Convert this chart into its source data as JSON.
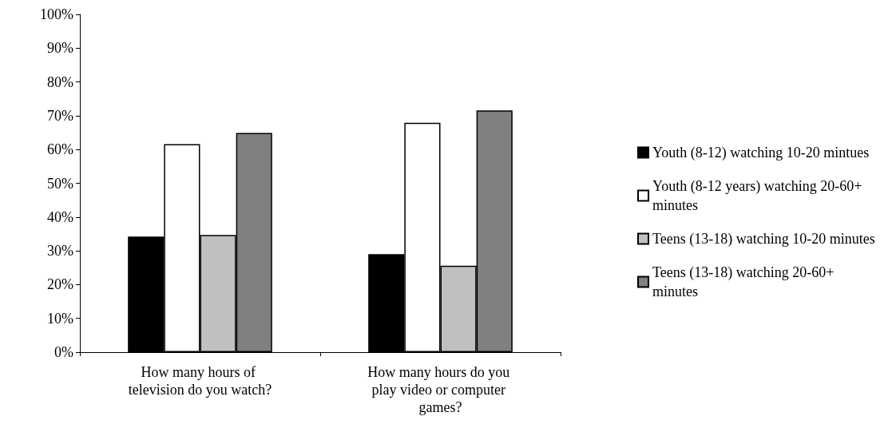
{
  "chart_data": {
    "type": "bar",
    "categories": [
      "How many hours of television do you watch?",
      "How many hours do you play video or computer games?"
    ],
    "series": [
      {
        "name": "Youth (8-12) watching 10-20 mintues",
        "color": "#000000",
        "values": [
          34.2,
          29.0
        ]
      },
      {
        "name": "Youth (8-12 years) watching 20-60+ minutes",
        "color": "#ffffff",
        "values": [
          61.6,
          67.9
        ]
      },
      {
        "name": "Teens (13-18) watching 10-20 minutes",
        "color": "#c0c0c0",
        "values": [
          34.7,
          25.6
        ]
      },
      {
        "name": "Teens (13-18) watching 20-60+ minutes",
        "color": "#808080",
        "values": [
          64.9,
          71.6
        ]
      }
    ],
    "ylim": [
      0,
      100
    ],
    "yticks": [
      {
        "value": 0,
        "label": "0%"
      },
      {
        "value": 10,
        "label": "10%"
      },
      {
        "value": 20,
        "label": "20%"
      },
      {
        "value": 30,
        "label": "30%"
      },
      {
        "value": 40,
        "label": "40%"
      },
      {
        "value": 50,
        "label": "50%"
      },
      {
        "value": 60,
        "label": "60%"
      },
      {
        "value": 70,
        "label": "70%"
      },
      {
        "value": 80,
        "label": "80%"
      },
      {
        "value": 90,
        "label": "90%"
      },
      {
        "value": 100,
        "label": "100%"
      }
    ],
    "grid": false,
    "legend": "right"
  }
}
